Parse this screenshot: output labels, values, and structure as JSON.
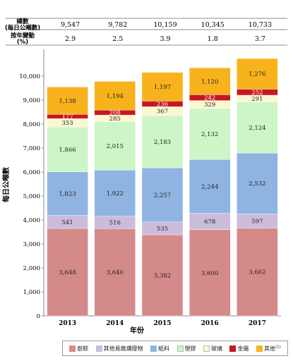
{
  "table": {
    "row1_label": "總數",
    "row1_sub": "(每日公噸數)",
    "row2_label": "按年變動",
    "row2_sub": "(%)",
    "totals": [
      "9,547",
      "9,782",
      "10,159",
      "10,345",
      "10,733"
    ],
    "changes": [
      "2.9",
      "2.5",
      "3.9",
      "1.8",
      "3.7"
    ]
  },
  "colors": {
    "food": "#d58a8a",
    "other_putrescibles": "#cbbcdc",
    "paper": "#8fb4e2",
    "plastics": "#cdf5c8",
    "glass": "#fbf7d0",
    "metals": "#c6181c",
    "others": "#f7b21c"
  },
  "chart_data": {
    "type": "bar",
    "stacked": true,
    "categories": [
      "2013",
      "2014",
      "2015",
      "2016",
      "2017"
    ],
    "xlabel": "年份",
    "ylabel": "每日公噸數",
    "ylim": [
      0,
      11000
    ],
    "yticks": [
      "0",
      "1,000",
      "2,000",
      "3,000",
      "4,000",
      "5,000",
      "6,000",
      "7,000",
      "8,000",
      "9,000",
      "10,000"
    ],
    "series": [
      {
        "name": "廚餘",
        "key": "food",
        "values": [
          3648,
          3640,
          3382,
          3600,
          3662
        ],
        "labels": [
          "3,648",
          "3,640",
          "3,382",
          "3,600",
          "3,662"
        ]
      },
      {
        "name": "其他易腐爛廢物",
        "key": "other_putrescibles",
        "values": [
          541,
          516,
          535,
          678,
          597
        ],
        "labels": [
          "541",
          "516",
          "535",
          "678",
          "597"
        ]
      },
      {
        "name": "紙料",
        "key": "paper",
        "values": [
          1823,
          1922,
          2257,
          2244,
          2532
        ],
        "labels": [
          "1,823",
          "1,922",
          "2,257",
          "2,244",
          "2,532"
        ]
      },
      {
        "name": "塑膠",
        "key": "plastics",
        "values": [
          1866,
          2015,
          2183,
          2132,
          2124
        ],
        "labels": [
          "1,866",
          "2,015",
          "2,183",
          "2,132",
          "2,124"
        ]
      },
      {
        "name": "玻璃",
        "key": "glass",
        "values": [
          353,
          285,
          367,
          329,
          291
        ],
        "labels": [
          "353",
          "285",
          "367",
          "329",
          "291"
        ]
      },
      {
        "name": "金屬",
        "key": "metals",
        "values": [
          177,
          208,
          236,
          242,
          252
        ],
        "labels": [
          "177",
          "208",
          "236",
          "242",
          "252"
        ]
      },
      {
        "name": "其他",
        "key": "others",
        "values": [
          1138,
          1194,
          1197,
          1120,
          1276
        ],
        "labels": [
          "1,138",
          "1,194",
          "1,197",
          "1,120",
          "1,276"
        ]
      }
    ],
    "legend_note": "(1)",
    "grid": false,
    "legend_position": "bottom"
  }
}
